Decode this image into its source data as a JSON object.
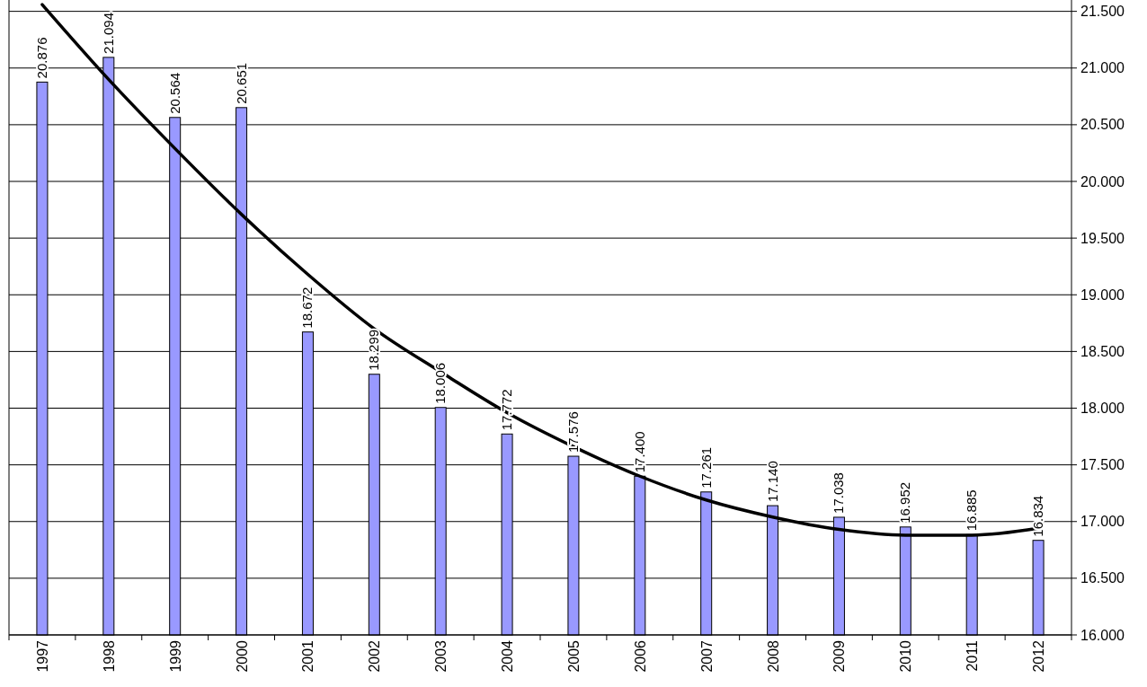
{
  "chart_data": {
    "type": "bar",
    "categories": [
      "1997",
      "1998",
      "1999",
      "2000",
      "2001",
      "2002",
      "2003",
      "2004",
      "2005",
      "2006",
      "2007",
      "2008",
      "2009",
      "2010",
      "2011",
      "2012"
    ],
    "series": [
      {
        "color": "#9999ff",
        "values": [
          20876,
          21094,
          20564,
          20651,
          18672,
          18299,
          18006,
          17772,
          17576,
          17400,
          17261,
          17140,
          17038,
          16952,
          16885,
          16834
        ],
        "value_labels": [
          "20.876",
          "21.094",
          "20.564",
          "20.651",
          "18.672",
          "18.299",
          "18.006",
          "17.772",
          "17.576",
          "17.400",
          "17.261",
          "17.140",
          "17.038",
          "16.952",
          "16.885",
          "16.834"
        ]
      },
      {
        "type": "line",
        "color": "#000000",
        "values": [
          21560,
          20900,
          20290,
          19710,
          19180,
          18700,
          18320,
          17960,
          17660,
          17400,
          17190,
          17040,
          16930,
          16880,
          16880,
          16940
        ]
      }
    ],
    "ylim": [
      16000,
      21600
    ],
    "yticks": [
      {
        "value": 16000,
        "label": "16.000"
      },
      {
        "value": 16500,
        "label": "16.500"
      },
      {
        "value": 17000,
        "label": "17.000"
      },
      {
        "value": 17500,
        "label": "17.500"
      },
      {
        "value": 18000,
        "label": "18.000"
      },
      {
        "value": 18500,
        "label": "18.500"
      },
      {
        "value": 19000,
        "label": "19.000"
      },
      {
        "value": 19500,
        "label": "19.500"
      },
      {
        "value": 20000,
        "label": "20.000"
      },
      {
        "value": 20500,
        "label": "20.500"
      },
      {
        "value": 21000,
        "label": "21.000"
      },
      {
        "value": 21500,
        "label": "21.500"
      }
    ],
    "grid": "y"
  }
}
